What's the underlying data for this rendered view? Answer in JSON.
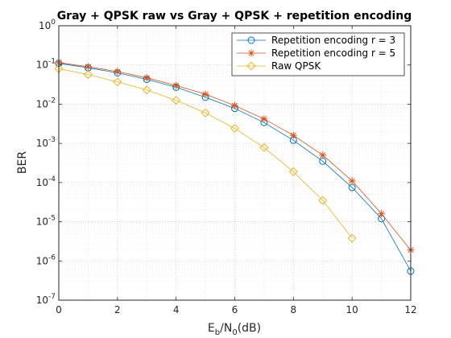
{
  "chart_data": {
    "type": "line",
    "title": "Gray + QPSK raw vs Gray + QPSK + repetition encoding",
    "xlabel_main": "E",
    "xlabel_sub1": "b",
    "xlabel_mid": "/N",
    "xlabel_sub2": "0",
    "xlabel_tail": "(dB)",
    "ylabel": "BER",
    "xlim": [
      0,
      12
    ],
    "ylim_log10": [
      -7,
      0
    ],
    "y_scale": "log",
    "grid": "major and minor, dotted",
    "legend_position": "top-right",
    "x_ticks": [
      "0",
      "2",
      "4",
      "6",
      "8",
      "10",
      "12"
    ],
    "y_ticks": [
      {
        "base": "10",
        "exp": "0"
      },
      {
        "base": "10",
        "exp": "-1"
      },
      {
        "base": "10",
        "exp": "-2"
      },
      {
        "base": "10",
        "exp": "-3"
      },
      {
        "base": "10",
        "exp": "-4"
      },
      {
        "base": "10",
        "exp": "-5"
      },
      {
        "base": "10",
        "exp": "-6"
      },
      {
        "base": "10",
        "exp": "-7"
      }
    ],
    "series": [
      {
        "name": "Repetition encoding r = 3",
        "color": "#0072BD",
        "marker": "circle",
        "x": [
          0,
          1,
          2,
          3,
          4,
          5,
          6,
          7,
          8,
          9,
          10,
          11,
          12
        ],
        "y": [
          0.11,
          0.085,
          0.063,
          0.043,
          0.027,
          0.015,
          0.0078,
          0.0034,
          0.0012,
          0.00035,
          7.5e-05,
          1.2e-05,
          5.5e-07
        ]
      },
      {
        "name": "Repetition encoding r = 5",
        "color": "#D95319",
        "marker": "asterisk",
        "x": [
          0,
          1,
          2,
          3,
          4,
          5,
          6,
          7,
          8,
          9,
          10,
          11,
          12
        ],
        "y": [
          0.115,
          0.09,
          0.068,
          0.047,
          0.03,
          0.018,
          0.0092,
          0.0042,
          0.0016,
          0.0005,
          0.00011,
          1.6e-05,
          1.9e-06
        ]
      },
      {
        "name": "Raw QPSK",
        "color": "#EDB120",
        "marker": "diamond",
        "x": [
          0,
          1,
          2,
          3,
          4,
          5,
          6,
          7,
          8,
          9,
          10
        ],
        "y": [
          0.08,
          0.057,
          0.037,
          0.023,
          0.0125,
          0.006,
          0.0024,
          0.00078,
          0.00019,
          3.5e-05,
          3.8e-06
        ]
      }
    ]
  }
}
